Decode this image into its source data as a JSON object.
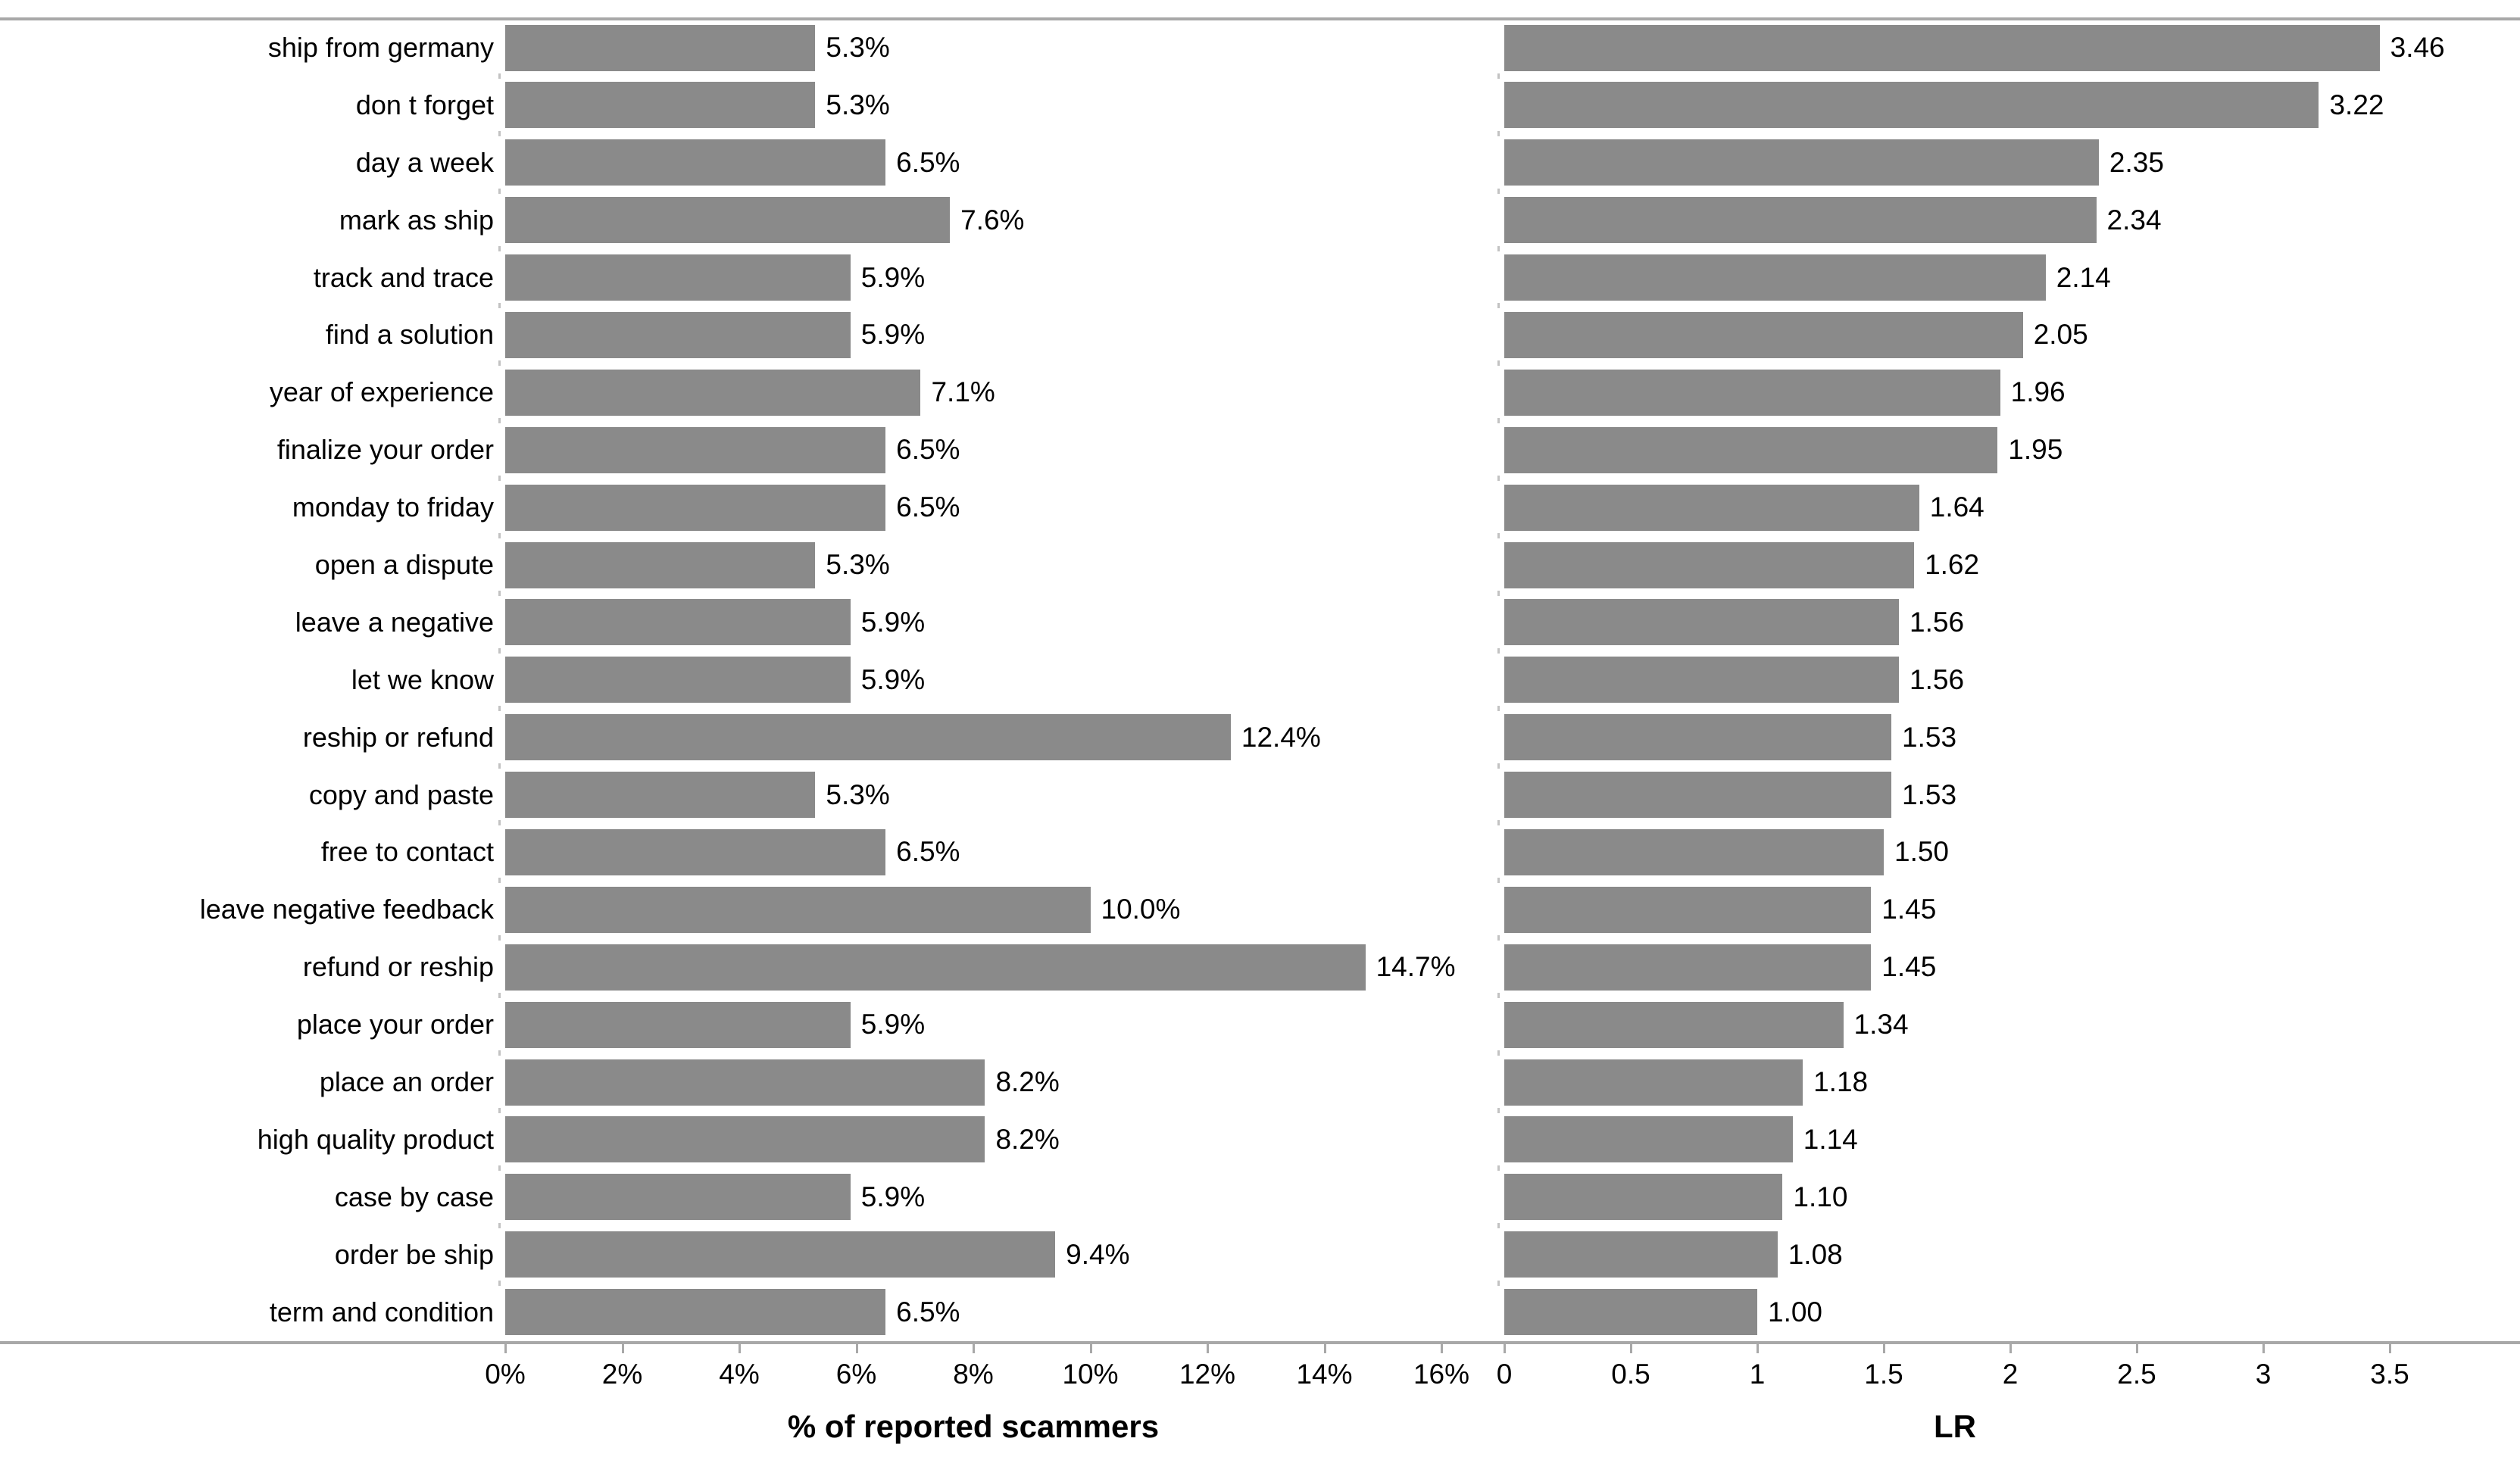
{
  "figure": {
    "bar_color": "#8a8a8a",
    "axis_color": "#a8a8a8",
    "text_color": "#000000",
    "background_color": "#ffffff"
  },
  "chart_data": {
    "type": "bar",
    "orientation": "horizontal",
    "grid": false,
    "legend": false,
    "categories": [
      "ship from germany",
      "don t forget",
      "day a week",
      "mark as ship",
      "track and trace",
      "find a solution",
      "year of experience",
      "finalize your order",
      "monday to friday",
      "open a dispute",
      "leave a negative",
      "let we know",
      "reship or refund",
      "copy and paste",
      "free to contact",
      "leave negative feedback",
      "refund or reship",
      "place your order",
      "place an order",
      "high quality product",
      "case by case",
      "order be ship",
      "term and condition"
    ],
    "panels": [
      {
        "xlabel": "% of reported scammers",
        "values": [
          5.3,
          5.3,
          6.5,
          7.6,
          5.9,
          5.9,
          7.1,
          6.5,
          6.5,
          5.3,
          5.9,
          5.9,
          12.4,
          5.3,
          6.5,
          10.0,
          14.7,
          5.9,
          8.2,
          8.2,
          5.9,
          9.4,
          6.5
        ],
        "value_labels": [
          "5.3%",
          "5.3%",
          "6.5%",
          "7.6%",
          "5.9%",
          "5.9%",
          "7.1%",
          "6.5%",
          "6.5%",
          "5.3%",
          "5.9%",
          "5.9%",
          "12.4%",
          "5.3%",
          "6.5%",
          "10.0%",
          "14.7%",
          "5.9%",
          "8.2%",
          "8.2%",
          "5.9%",
          "9.4%",
          "6.5%"
        ],
        "xlim": [
          0,
          16
        ],
        "ticks": [
          {
            "label": "0%",
            "value": 0
          },
          {
            "label": "2%",
            "value": 2
          },
          {
            "label": "4%",
            "value": 4
          },
          {
            "label": "6%",
            "value": 6
          },
          {
            "label": "8%",
            "value": 8
          },
          {
            "label": "10%",
            "value": 10
          },
          {
            "label": "12%",
            "value": 12
          },
          {
            "label": "14%",
            "value": 14
          },
          {
            "label": "16%",
            "value": 16
          }
        ]
      },
      {
        "xlabel": "LR",
        "values": [
          3.46,
          3.22,
          2.35,
          2.34,
          2.14,
          2.05,
          1.96,
          1.95,
          1.64,
          1.62,
          1.56,
          1.56,
          1.53,
          1.53,
          1.5,
          1.45,
          1.45,
          1.34,
          1.18,
          1.14,
          1.1,
          1.08,
          1.0
        ],
        "value_labels": [
          "3.46",
          "3.22",
          "2.35",
          "2.34",
          "2.14",
          "2.05",
          "1.96",
          "1.95",
          "1.64",
          "1.62",
          "1.56",
          "1.56",
          "1.53",
          "1.53",
          "1.50",
          "1.45",
          "1.45",
          "1.34",
          "1.18",
          "1.14",
          "1.10",
          "1.08",
          "1.00"
        ],
        "xlim": [
          0,
          3.5
        ],
        "ticks": [
          {
            "label": "0",
            "value": 0
          },
          {
            "label": "0.5",
            "value": 0.5
          },
          {
            "label": "1",
            "value": 1
          },
          {
            "label": "1.5",
            "value": 1.5
          },
          {
            "label": "2",
            "value": 2
          },
          {
            "label": "2.5",
            "value": 2.5
          },
          {
            "label": "3",
            "value": 3
          },
          {
            "label": "3.5",
            "value": 3.5
          }
        ]
      }
    ]
  }
}
